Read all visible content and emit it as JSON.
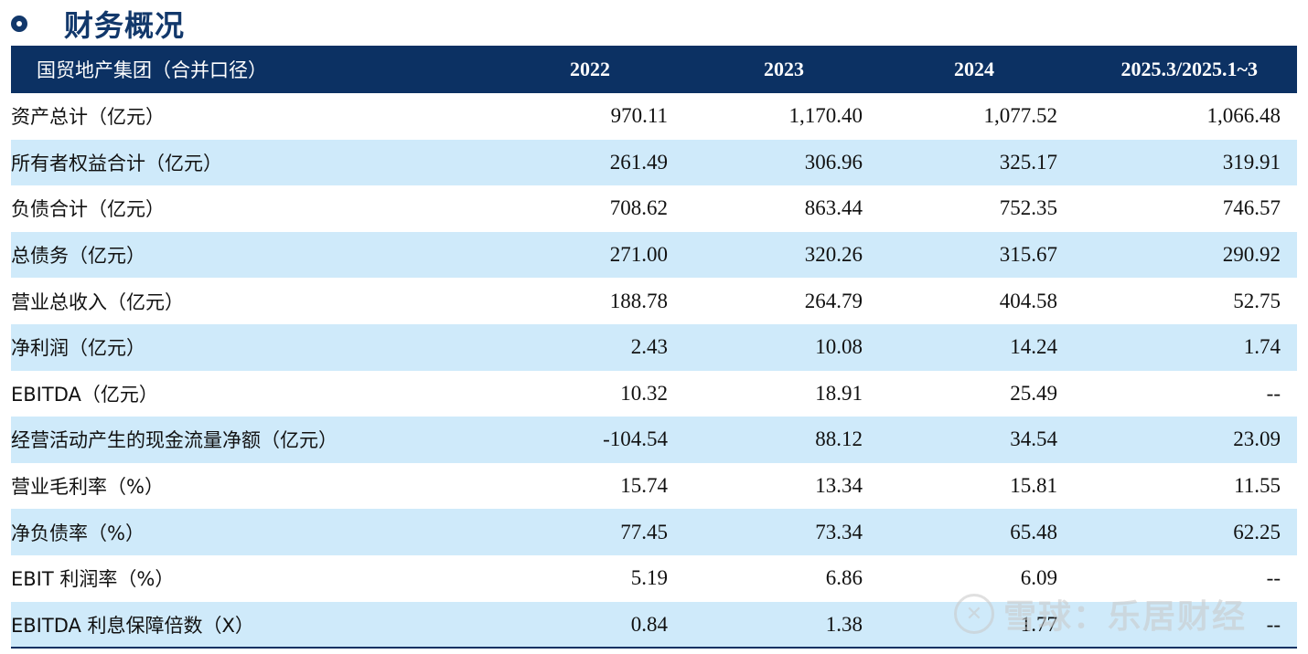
{
  "section": {
    "title": "财务概况",
    "bullet_icon": "ring-bullet-icon",
    "accent_color": "#12386b"
  },
  "table": {
    "header": [
      "国贸地产集团（合并口径）",
      "2022",
      "2023",
      "2024",
      "2025.3/2025.1~3"
    ],
    "header_color": "#0c3163",
    "stripe_color": "#cfeafa",
    "rows": [
      {
        "label": "资产总计（亿元）",
        "values": [
          "970.11",
          "1,170.40",
          "1,077.52",
          "1,066.48"
        ]
      },
      {
        "label": "所有者权益合计（亿元）",
        "values": [
          "261.49",
          "306.96",
          "325.17",
          "319.91"
        ]
      },
      {
        "label": "负债合计（亿元）",
        "values": [
          "708.62",
          "863.44",
          "752.35",
          "746.57"
        ]
      },
      {
        "label": "总债务（亿元）",
        "values": [
          "271.00",
          "320.26",
          "315.67",
          "290.92"
        ]
      },
      {
        "label": "营业总收入（亿元）",
        "values": [
          "188.78",
          "264.79",
          "404.58",
          "52.75"
        ]
      },
      {
        "label": "净利润（亿元）",
        "values": [
          "2.43",
          "10.08",
          "14.24",
          "1.74"
        ]
      },
      {
        "label": "EBITDA（亿元）",
        "values": [
          "10.32",
          "18.91",
          "25.49",
          "--"
        ]
      },
      {
        "label": "经营活动产生的现金流量净额（亿元）",
        "values": [
          "-104.54",
          "88.12",
          "34.54",
          "23.09"
        ]
      },
      {
        "label": "营业毛利率（%）",
        "values": [
          "15.74",
          "13.34",
          "15.81",
          "11.55"
        ]
      },
      {
        "label": "净负债率（%）",
        "values": [
          "77.45",
          "73.34",
          "65.48",
          "62.25"
        ]
      },
      {
        "label": "EBIT 利润率（%）",
        "values": [
          "5.19",
          "6.86",
          "6.09",
          "--"
        ]
      },
      {
        "label": "EBITDA 利息保障倍数（X）",
        "values": [
          "0.84",
          "1.38",
          "1.77",
          "--"
        ]
      }
    ]
  },
  "watermark": {
    "icon": "snowball-logo-icon",
    "text": "雪球：乐居财经"
  }
}
